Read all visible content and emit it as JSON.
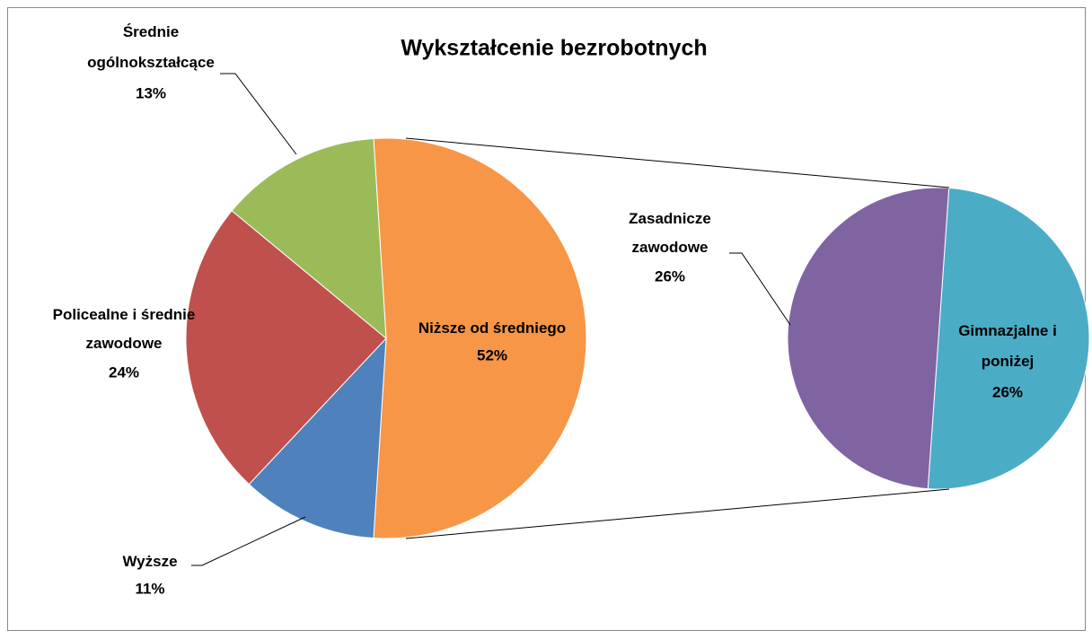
{
  "chart_data": {
    "type": "pie-of-pie",
    "title": "Wykształcenie bezrobotnych",
    "categories": [
      "Niższe od średniego",
      "Wyższe",
      "Policealne i średnie\nzawodowe",
      "Średnie\nogólnokształcące"
    ],
    "values": [
      52,
      11,
      24,
      13
    ],
    "value_labels": [
      "52%",
      "11%",
      "24%",
      "13%"
    ],
    "colors": [
      "#f79646",
      "#4f81bd",
      "#c0504d",
      "#9bbb59"
    ],
    "secondary": {
      "categories": [
        "Gimnazjalne i\nponiżej",
        "Zasadnicze\nzawodowe"
      ],
      "values": [
        26,
        26
      ],
      "value_labels": [
        "26%",
        "26%"
      ],
      "colors": [
        "#4bacc6",
        "#8064a2"
      ]
    }
  }
}
